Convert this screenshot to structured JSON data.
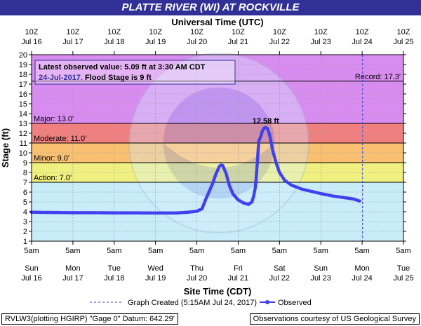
{
  "title": "PLATTE RIVER (WI) AT ROCKVILLE",
  "top_axis_title": "Universal Time (UTC)",
  "bottom_axis_title": "Site Time (CDT)",
  "ylabel": "Stage (ft)",
  "colors": {
    "title_bg": "#303096",
    "record_zone": "#d98cf0",
    "major_zone": "#e8707a",
    "moderate_zone": "#f08080",
    "minor_zone": "#f8c070",
    "action_zone": "#f0f080",
    "normal_zone": "#c8ecf8",
    "series": "#4040f0",
    "created_line": "#4040f0"
  },
  "info_box": {
    "line1": "Latest observed value: 5.09 ft at 3:30 AM CDT",
    "line2a": "24-Jul-2017.",
    "line2b": "Flood Stage is 9 ft"
  },
  "thresholds": {
    "record": {
      "label": "Record: 17.3'",
      "value": 17.3
    },
    "major": {
      "label": "Major: 13.0'",
      "value": 13.0
    },
    "moderate": {
      "label": "Moderate: 11.0'",
      "value": 11.0
    },
    "minor": {
      "label": "Minor: 9.0'",
      "value": 9.0
    },
    "action": {
      "label": "Action: 7.0'",
      "value": 7.0
    }
  },
  "peak_label": "12.58 ft",
  "legend": {
    "created": "Graph Created (5:15AM Jul 24, 2017)",
    "observed": "Observed"
  },
  "footer": {
    "left": "RVLW3(plotting HGIRP) \"Gage 0\" Datum: 642.29'",
    "right": "Observations courtesy of US Geological Survey"
  },
  "chart_data": {
    "type": "line",
    "title": "PLATTE RIVER (WI) AT ROCKVILLE",
    "xlabel": "Site Time (CDT)",
    "x2label": "Universal Time (UTC)",
    "ylabel": "Stage (ft)",
    "ylim": [
      1,
      20
    ],
    "xlim": [
      "2017-07-16 05:00",
      "2017-07-25 05:00"
    ],
    "yticks": [
      1,
      2,
      3,
      4,
      5,
      6,
      7,
      8,
      9,
      10,
      11,
      12,
      13,
      14,
      15,
      16,
      17,
      18,
      19,
      20
    ],
    "bottom_ticks": [
      {
        "top": "5am",
        "mid": "Sun",
        "bot": "Jul 16"
      },
      {
        "top": "5am",
        "mid": "Mon",
        "bot": "Jul 17"
      },
      {
        "top": "5am",
        "mid": "Tue",
        "bot": "Jul 18"
      },
      {
        "top": "5am",
        "mid": "Wed",
        "bot": "Jul 19"
      },
      {
        "top": "5am",
        "mid": "Thu",
        "bot": "Jul 20"
      },
      {
        "top": "5am",
        "mid": "Fri",
        "bot": "Jul 21"
      },
      {
        "top": "5am",
        "mid": "Sat",
        "bot": "Jul 22"
      },
      {
        "top": "5am",
        "mid": "Sun",
        "bot": "Jul 23"
      },
      {
        "top": "5am",
        "mid": "Mon",
        "bot": "Jul 24"
      },
      {
        "top": "5am",
        "mid": "Tue",
        "bot": "Jul 25"
      }
    ],
    "top_ticks": [
      {
        "top": "10Z",
        "bot": "Jul 16"
      },
      {
        "top": "10Z",
        "bot": "Jul 17"
      },
      {
        "top": "10Z",
        "bot": "Jul 18"
      },
      {
        "top": "10Z",
        "bot": "Jul 19"
      },
      {
        "top": "10Z",
        "bot": "Jul 20"
      },
      {
        "top": "10Z",
        "bot": "Jul 21"
      },
      {
        "top": "10Z",
        "bot": "Jul 22"
      },
      {
        "top": "10Z",
        "bot": "Jul 23"
      },
      {
        "top": "10Z",
        "bot": "Jul 24"
      },
      {
        "top": "10Z",
        "bot": "Jul 25"
      }
    ],
    "graph_created": "2017-07-24 05:15",
    "series": [
      {
        "name": "Observed",
        "points": [
          [
            "2017-07-16 05:00",
            3.95
          ],
          [
            "2017-07-16 12:00",
            3.93
          ],
          [
            "2017-07-16 18:00",
            3.92
          ],
          [
            "2017-07-17 05:00",
            3.9
          ],
          [
            "2017-07-17 17:00",
            3.9
          ],
          [
            "2017-07-18 05:00",
            3.88
          ],
          [
            "2017-07-18 17:00",
            3.88
          ],
          [
            "2017-07-19 05:00",
            3.87
          ],
          [
            "2017-07-19 17:00",
            3.87
          ],
          [
            "2017-07-20 00:00",
            3.95
          ],
          [
            "2017-07-20 05:00",
            4.05
          ],
          [
            "2017-07-20 08:00",
            4.3
          ],
          [
            "2017-07-20 10:00",
            5.2
          ],
          [
            "2017-07-20 12:00",
            6.0
          ],
          [
            "2017-07-20 14:00",
            6.8
          ],
          [
            "2017-07-20 16:00",
            7.8
          ],
          [
            "2017-07-20 18:00",
            8.6
          ],
          [
            "2017-07-20 19:00",
            8.75
          ],
          [
            "2017-07-20 20:00",
            8.7
          ],
          [
            "2017-07-20 22:00",
            7.9
          ],
          [
            "2017-07-21 00:00",
            6.6
          ],
          [
            "2017-07-21 02:00",
            5.8
          ],
          [
            "2017-07-21 05:00",
            5.2
          ],
          [
            "2017-07-21 08:00",
            4.9
          ],
          [
            "2017-07-21 11:00",
            4.75
          ],
          [
            "2017-07-21 13:00",
            5.0
          ],
          [
            "2017-07-21 14:00",
            5.6
          ],
          [
            "2017-07-21 15:00",
            6.5
          ],
          [
            "2017-07-21 15:30",
            7.5
          ],
          [
            "2017-07-21 16:00",
            8.7
          ],
          [
            "2017-07-21 16:30",
            10.0
          ],
          [
            "2017-07-21 17:00",
            11.2
          ],
          [
            "2017-07-21 18:00",
            11.6
          ],
          [
            "2017-07-21 19:00",
            12.2
          ],
          [
            "2017-07-21 20:00",
            12.5
          ],
          [
            "2017-07-21 21:00",
            12.58
          ],
          [
            "2017-07-21 22:00",
            12.45
          ],
          [
            "2017-07-21 23:00",
            12.0
          ],
          [
            "2017-07-22 00:00",
            11.2
          ],
          [
            "2017-07-22 01:00",
            10.3
          ],
          [
            "2017-07-22 03:00",
            9.0
          ],
          [
            "2017-07-22 05:00",
            8.0
          ],
          [
            "2017-07-22 08:00",
            7.2
          ],
          [
            "2017-07-22 12:00",
            6.7
          ],
          [
            "2017-07-22 18:00",
            6.3
          ],
          [
            "2017-07-23 00:00",
            6.05
          ],
          [
            "2017-07-23 05:00",
            5.85
          ],
          [
            "2017-07-23 12:00",
            5.6
          ],
          [
            "2017-07-23 18:00",
            5.45
          ],
          [
            "2017-07-24 00:00",
            5.3
          ],
          [
            "2017-07-24 03:30",
            5.09
          ]
        ]
      }
    ]
  }
}
